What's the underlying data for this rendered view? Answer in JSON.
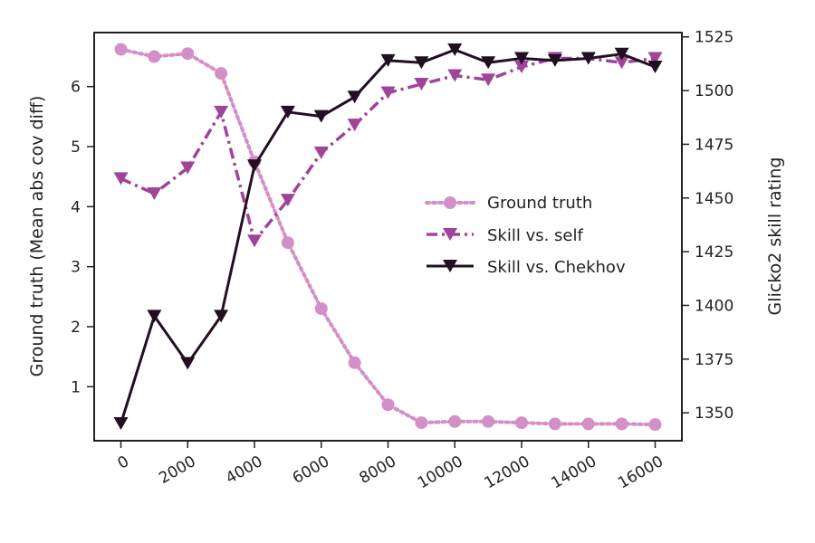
{
  "chart_data": {
    "type": "line",
    "x": [
      0,
      1000,
      2000,
      3000,
      4000,
      5000,
      6000,
      7000,
      8000,
      9000,
      10000,
      11000,
      12000,
      13000,
      14000,
      15000,
      16000
    ],
    "xticks": [
      "0",
      "2000",
      "4000",
      "6000",
      "8000",
      "10000",
      "12000",
      "14000",
      "16000"
    ],
    "xlim": [
      -800,
      16800
    ],
    "left_axis": {
      "label": "Ground truth (Mean abs cov diff)",
      "ylim": [
        0.1,
        6.9
      ],
      "ticks": [
        "1",
        "2",
        "3",
        "4",
        "5",
        "6"
      ]
    },
    "right_axis": {
      "label": "Glicko2 skill rating",
      "ylim": [
        1337,
        1527
      ],
      "ticks": [
        "1350",
        "1375",
        "1400",
        "1425",
        "1450",
        "1475",
        "1500",
        "1525"
      ]
    },
    "series": [
      {
        "name": "Ground truth",
        "axis": "left",
        "color": "#d48fc8",
        "style": "dotted",
        "marker": "circle",
        "values": [
          6.62,
          6.5,
          6.55,
          6.22,
          4.75,
          3.4,
          2.3,
          1.4,
          0.7,
          0.4,
          0.42,
          0.42,
          0.4,
          0.38,
          0.38,
          0.38,
          0.37
        ]
      },
      {
        "name": "Skill vs. self",
        "axis": "right",
        "color": "#a0449a",
        "style": "dashdot",
        "marker": "triangle-down",
        "values": [
          1459,
          1452,
          1464,
          1490,
          1430,
          1449,
          1471,
          1484,
          1499,
          1503,
          1507,
          1505,
          1511,
          1515,
          1515,
          1513,
          1515
        ]
      },
      {
        "name": "Skill vs. Chekhov",
        "axis": "right",
        "color": "#220f22",
        "style": "solid",
        "marker": "triangle-down",
        "values": [
          1345,
          1395,
          1373,
          1395,
          1465,
          1490,
          1488,
          1497,
          1514,
          1513,
          1519,
          1513,
          1515,
          1514,
          1515,
          1517,
          1511
        ]
      }
    ],
    "legend": {
      "position": "center-right",
      "entries": [
        "Ground truth",
        "Skill vs. self",
        "Skill vs. Chekhov"
      ]
    },
    "grid": false
  }
}
